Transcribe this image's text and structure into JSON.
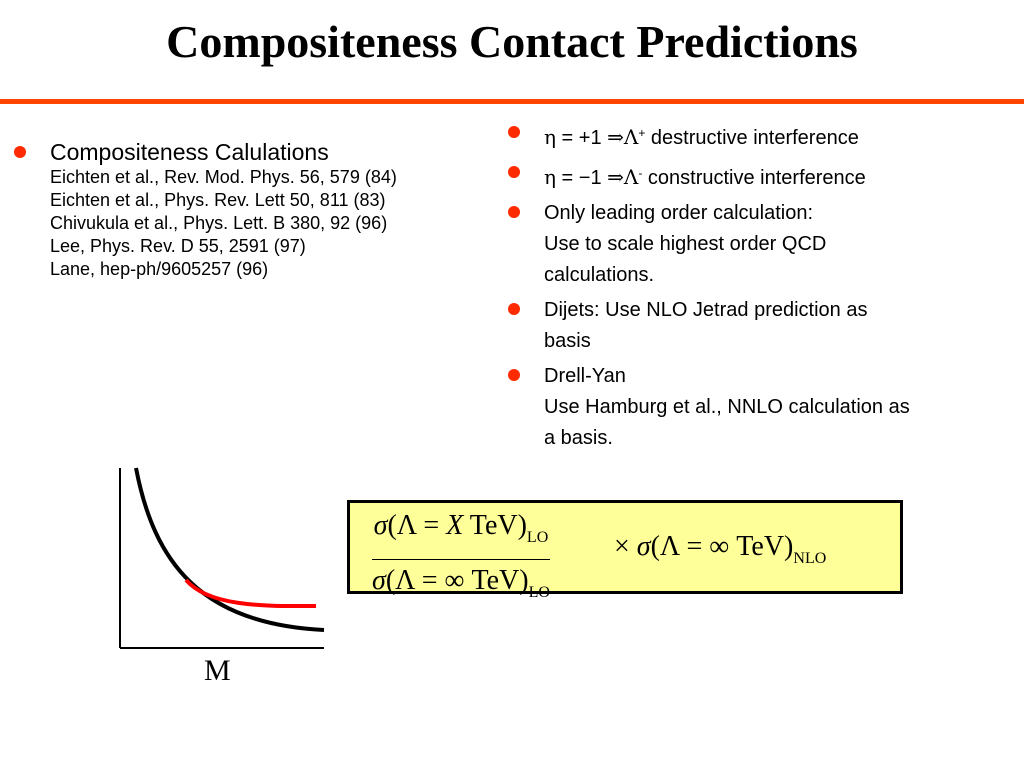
{
  "title": "Compositeness Contact Predictions",
  "left": {
    "heading": "Compositeness Calulations",
    "refs": [
      "Eichten et al., Rev. Mod. Phys. 56, 579 (84)",
      "Eichten et al., Phys. Rev. Lett 50, 811 (83)",
      "Chivukula et al., Phys. Lett. B 380, 92 (96)",
      "Lee, Phys. Rev. D 55, 2591 (97)",
      "Lane, hep-ph/9605257 (96)"
    ]
  },
  "right": {
    "b1": {
      "eta": "η",
      "eq": " = +1 ",
      "arrow": "⇒",
      "lam": "Λ",
      "sup": "+",
      "text": " destructive interference"
    },
    "b2": {
      "eta": "η",
      "eq": " = −1 ",
      "arrow": "⇒",
      "lam": "Λ",
      "sup": "-",
      "text": " constructive interference"
    },
    "b3": {
      "l1": "Only leading order calculation:",
      "l2": "Use to scale highest order QCD",
      "l3": "calculations."
    },
    "b4": {
      "l1": "Dijets: Use NLO Jetrad prediction as",
      "l2": "basis"
    },
    "b5": {
      "l1": "Drell-Yan",
      "l2": "Use Hamburg et al., NNLO calculation as",
      "l3": "a basis."
    }
  },
  "graph": {
    "xlabel": "M",
    "black_color": "#000000",
    "red_color": "#ff0000"
  },
  "formula": {
    "sigma": "σ",
    "num_inner": "(Λ = ",
    "num_x": "X",
    "num_tail": " TeV)",
    "den_inner": "(Λ = ∞ TeV)",
    "lo": "LO",
    "times": "× ",
    "rhs": "(Λ = ∞ TeV)",
    "nlo": "NLO",
    "box_color": "#ffff99"
  }
}
